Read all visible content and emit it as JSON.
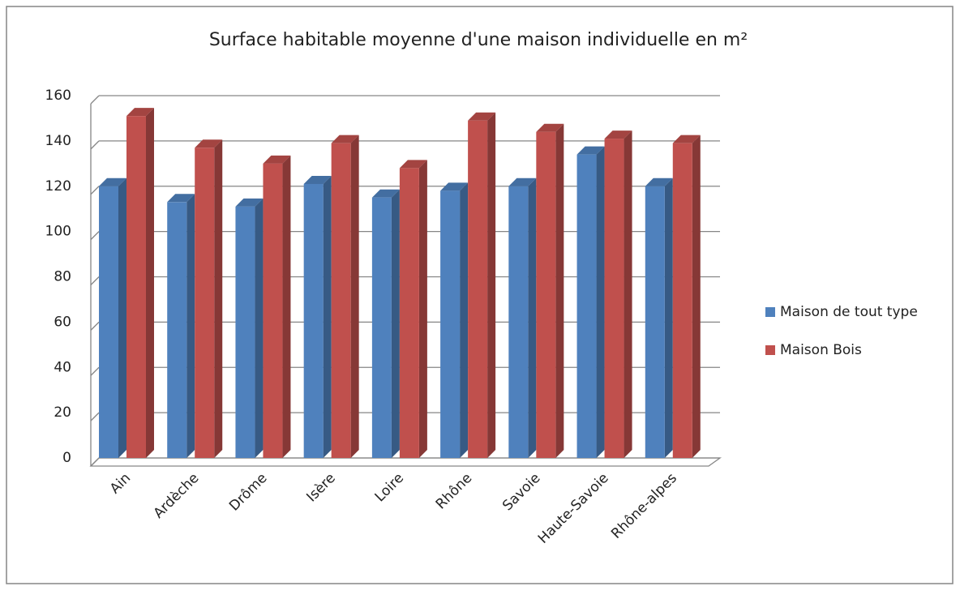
{
  "chart_data": {
    "type": "bar",
    "title": "Surface habitable moyenne d'une maison individuelle en m²",
    "categories": [
      "Ain",
      "Ardèche",
      "Drôme",
      "Isère",
      "Loire",
      "Rhône",
      "Savoie",
      "Haute-Savoie",
      "Rhône-alpes"
    ],
    "series": [
      {
        "name": "Maison de tout type",
        "color": "#4f81bd",
        "values": [
          120,
          113,
          111,
          121,
          115,
          118,
          120,
          134,
          120
        ]
      },
      {
        "name": "Maison Bois",
        "color": "#c0504d",
        "values": [
          151,
          137,
          130,
          139,
          128,
          149,
          144,
          141,
          139
        ]
      }
    ],
    "ylim": [
      0,
      160
    ],
    "yticks": [
      0,
      20,
      40,
      60,
      80,
      100,
      120,
      140,
      160
    ],
    "grid": true,
    "legend": "right"
  }
}
